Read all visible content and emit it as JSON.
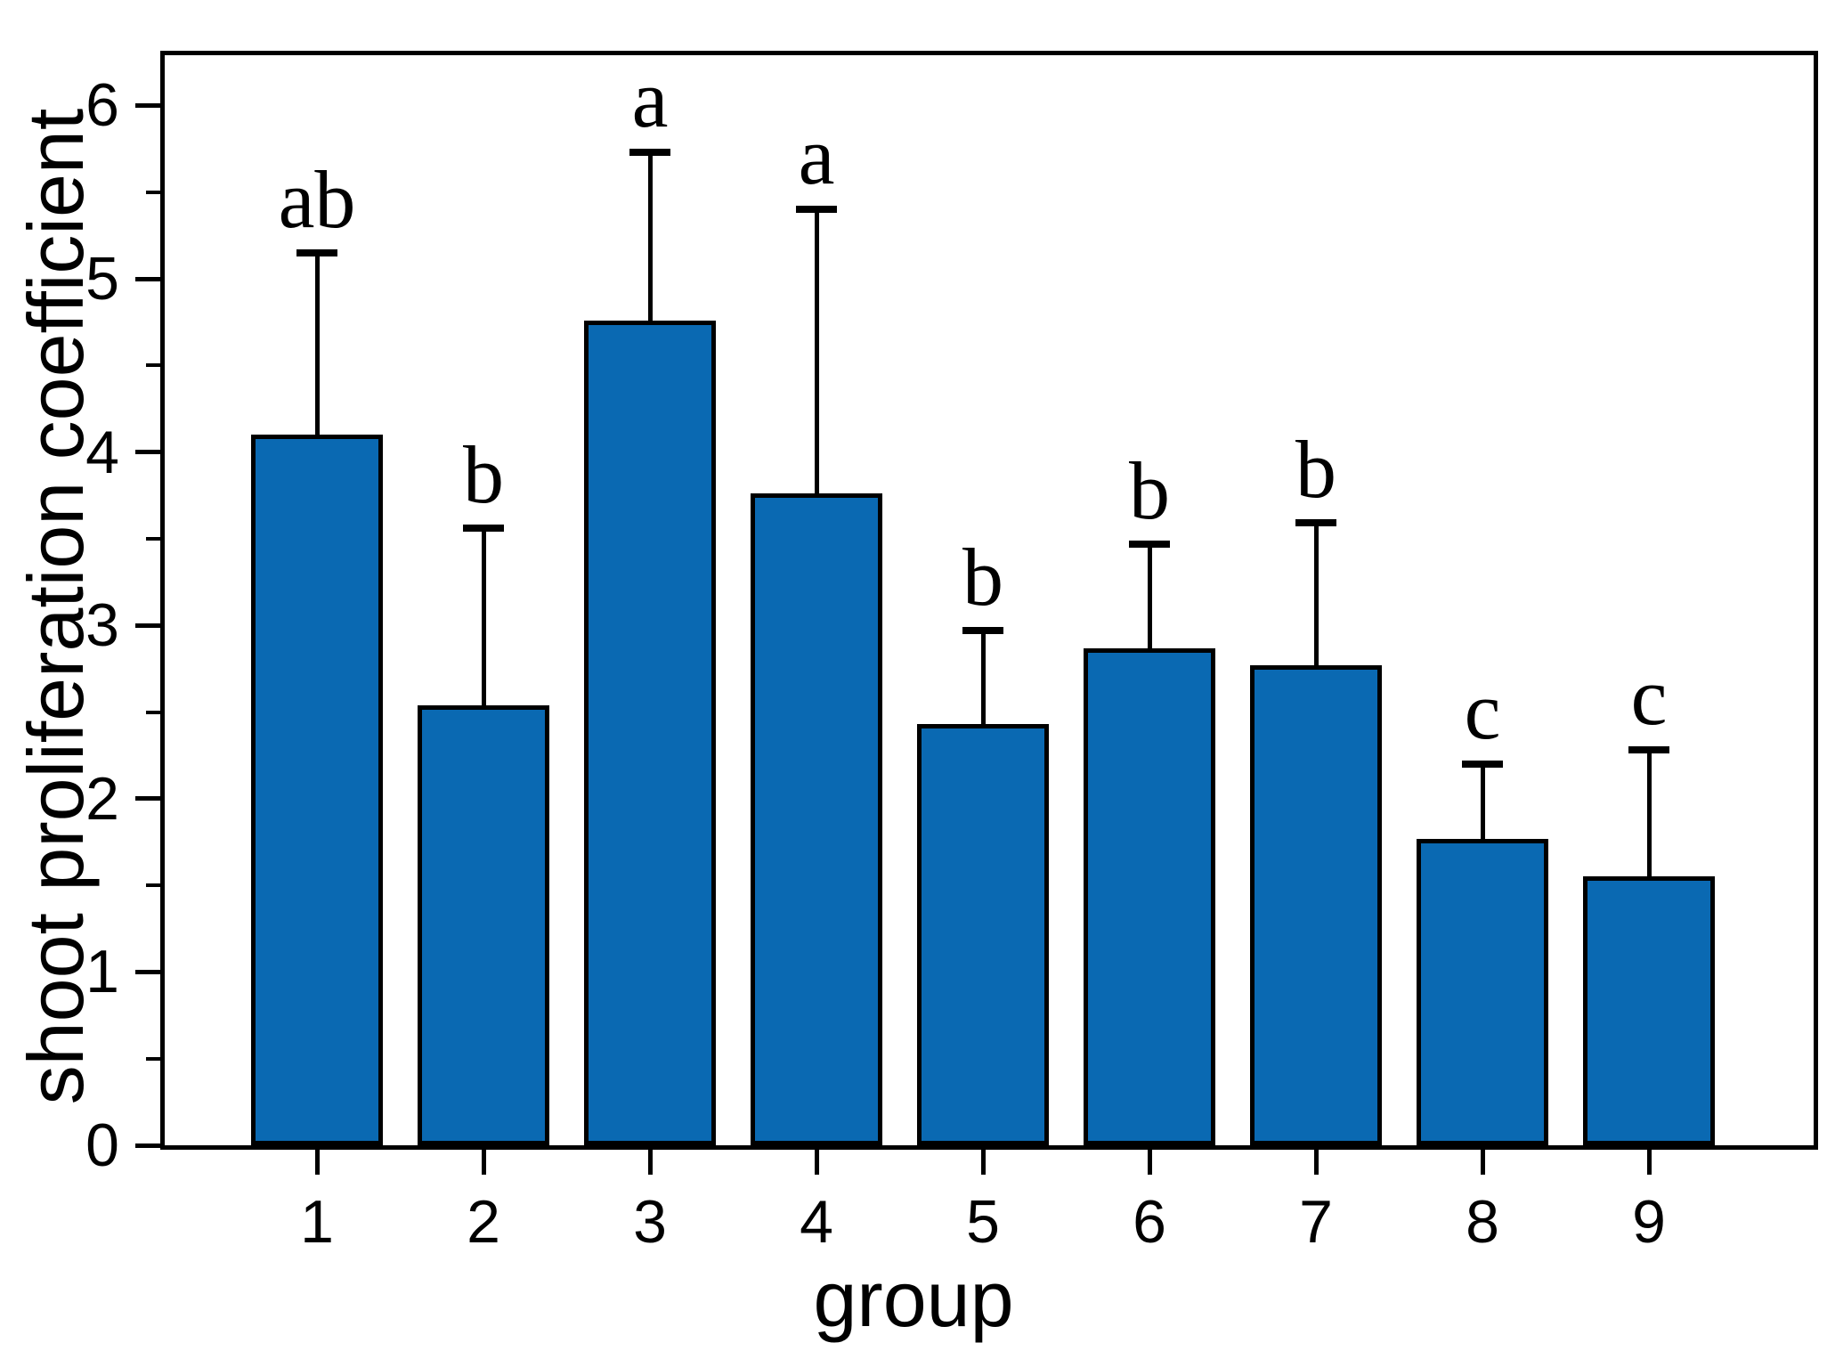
{
  "chart_data": {
    "type": "bar",
    "title": "",
    "xlabel": "group",
    "ylabel": "shoot proliferation coefficient",
    "categories": [
      "1",
      "2",
      "3",
      "4",
      "5",
      "6",
      "7",
      "8",
      "9"
    ],
    "values": [
      4.1,
      2.54,
      4.76,
      3.76,
      2.43,
      2.87,
      2.77,
      1.77,
      1.55
    ],
    "errors_upper": [
      1.05,
      1.02,
      0.97,
      1.64,
      0.54,
      0.6,
      0.82,
      0.43,
      0.73
    ],
    "sig_letters": [
      "ab",
      "b",
      "a",
      "a",
      "b",
      "b",
      "b",
      "c",
      "c"
    ],
    "ylim": [
      0,
      6.29
    ],
    "yticks": [
      0,
      1,
      2,
      3,
      4,
      5,
      6
    ],
    "minor_tick_step": 0.5,
    "grid": false,
    "legend_position": "none",
    "bar_color": "#0a69b2",
    "bar_edge_color": "#000000",
    "error_color": "#000000",
    "background_color": "#ffffff"
  }
}
